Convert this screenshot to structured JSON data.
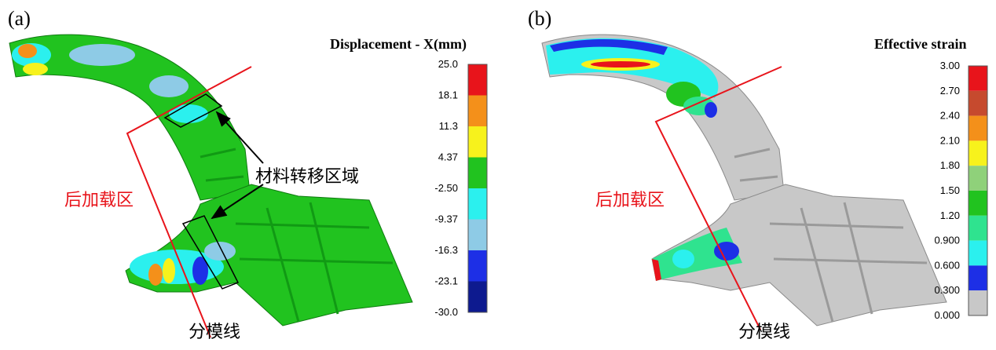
{
  "panel_a": {
    "label": "(a)",
    "colorbar_title": "Displacement - X(mm)",
    "ticks": [
      "25.0",
      "18.1",
      "11.3",
      "4.37",
      "-2.50",
      "-9.37",
      "-16.3",
      "-23.1",
      "-30.0"
    ],
    "colors": [
      "#e8141b",
      "#f4901a",
      "#f7f21c",
      "#21c31f",
      "#2bf0ee",
      "#8ecbe6",
      "#1d2fe6",
      "#0d1a8f"
    ],
    "zone_label": "后加载区",
    "transfer_label": "材料转移区域",
    "parting_label": "分模线"
  },
  "panel_b": {
    "label": "(b)",
    "colorbar_title": "Effective strain",
    "ticks": [
      "3.00",
      "2.70",
      "2.40",
      "2.10",
      "1.80",
      "1.50",
      "1.20",
      "0.900",
      "0.600",
      "0.300",
      "0.000"
    ],
    "colors": [
      "#e8141b",
      "#c64a2e",
      "#f4901a",
      "#f7f21c",
      "#8fd17a",
      "#21c31f",
      "#2fe38f",
      "#2bf0ee",
      "#1d2fe6",
      "#c8c8c8"
    ],
    "zone_label": "后加载区",
    "parting_label": "分模线"
  }
}
